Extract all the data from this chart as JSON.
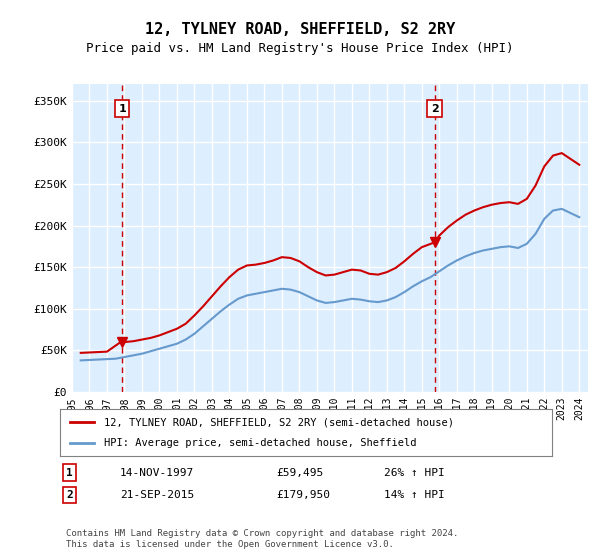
{
  "title": "12, TYLNEY ROAD, SHEFFIELD, S2 2RY",
  "subtitle": "Price paid vs. HM Land Registry's House Price Index (HPI)",
  "sale1_date": "1997-11-14",
  "sale1_price": 59495,
  "sale1_label": "1",
  "sale1_pct": "26% ↑ HPI",
  "sale1_display": "14-NOV-1997",
  "sale1_price_str": "£59,495",
  "sale2_date": "2015-09-21",
  "sale2_price": 179950,
  "sale2_label": "2",
  "sale2_pct": "14% ↑ HPI",
  "sale2_display": "21-SEP-2015",
  "sale2_price_str": "£179,950",
  "legend_line1": "12, TYLNEY ROAD, SHEFFIELD, S2 2RY (semi-detached house)",
  "legend_line2": "HPI: Average price, semi-detached house, Sheffield",
  "footer": "Contains HM Land Registry data © Crown copyright and database right 2024.\nThis data is licensed under the Open Government Licence v3.0.",
  "price_line_color": "#cc0000",
  "hpi_line_color": "#6699cc",
  "dashed_line_color": "#cc0000",
  "background_color": "#ffffff",
  "plot_bg_color": "#ddeeff",
  "grid_color": "#ffffff",
  "ylim": [
    0,
    370000
  ],
  "yticks": [
    0,
    50000,
    100000,
    150000,
    200000,
    250000,
    300000,
    350000
  ],
  "ytick_labels": [
    "£0",
    "£50K",
    "£100K",
    "£150K",
    "£200K",
    "£250K",
    "£300K",
    "£350K"
  ],
  "hpi_data_x": [
    1995.5,
    1996.0,
    1996.5,
    1997.0,
    1997.5,
    1998.0,
    1998.5,
    1999.0,
    1999.5,
    2000.0,
    2000.5,
    2001.0,
    2001.5,
    2002.0,
    2002.5,
    2003.0,
    2003.5,
    2004.0,
    2004.5,
    2005.0,
    2005.5,
    2006.0,
    2006.5,
    2007.0,
    2007.5,
    2008.0,
    2008.5,
    2009.0,
    2009.5,
    2010.0,
    2010.5,
    2011.0,
    2011.5,
    2012.0,
    2012.5,
    2013.0,
    2013.5,
    2014.0,
    2014.5,
    2015.0,
    2015.5,
    2016.0,
    2016.5,
    2017.0,
    2017.5,
    2018.0,
    2018.5,
    2019.0,
    2019.5,
    2020.0,
    2020.5,
    2021.0,
    2021.5,
    2022.0,
    2022.5,
    2023.0,
    2023.5,
    2024.0
  ],
  "hpi_data_y": [
    38000,
    38500,
    39000,
    39500,
    40000,
    42000,
    44000,
    46000,
    49000,
    52000,
    55000,
    58000,
    63000,
    70000,
    79000,
    88000,
    97000,
    105000,
    112000,
    116000,
    118000,
    120000,
    122000,
    124000,
    123000,
    120000,
    115000,
    110000,
    107000,
    108000,
    110000,
    112000,
    111000,
    109000,
    108000,
    110000,
    114000,
    120000,
    127000,
    133000,
    138000,
    145000,
    152000,
    158000,
    163000,
    167000,
    170000,
    172000,
    174000,
    175000,
    173000,
    178000,
    190000,
    208000,
    218000,
    220000,
    215000,
    210000
  ],
  "price_data_x": [
    1995.5,
    1996.0,
    1996.5,
    1997.0,
    1997.75,
    1998.0,
    1998.5,
    1999.0,
    1999.5,
    2000.0,
    2000.5,
    2001.0,
    2001.5,
    2002.0,
    2002.5,
    2003.0,
    2003.5,
    2004.0,
    2004.5,
    2005.0,
    2005.5,
    2006.0,
    2006.5,
    2007.0,
    2007.5,
    2008.0,
    2008.5,
    2009.0,
    2009.5,
    2010.0,
    2010.5,
    2011.0,
    2011.5,
    2012.0,
    2012.5,
    2013.0,
    2013.5,
    2014.0,
    2014.5,
    2015.0,
    2015.75,
    2016.0,
    2016.5,
    2017.0,
    2017.5,
    2018.0,
    2018.5,
    2019.0,
    2019.5,
    2020.0,
    2020.5,
    2021.0,
    2021.5,
    2022.0,
    2022.5,
    2023.0,
    2023.5,
    2024.0
  ],
  "price_data_y": [
    47000,
    47500,
    48000,
    48500,
    59495,
    60000,
    61000,
    63000,
    65000,
    68000,
    72000,
    76000,
    82000,
    92000,
    103000,
    115000,
    127000,
    138000,
    147000,
    152000,
    153000,
    155000,
    158000,
    162000,
    161000,
    157000,
    150000,
    144000,
    140000,
    141000,
    144000,
    147000,
    146000,
    142000,
    141000,
    144000,
    149000,
    157000,
    166000,
    174000,
    179950,
    188000,
    198000,
    206000,
    213000,
    218000,
    222000,
    225000,
    227000,
    228000,
    226000,
    232000,
    248000,
    271000,
    284000,
    287000,
    280000,
    273000
  ],
  "xlim_left": 1995.0,
  "xlim_right": 2024.5,
  "xticks": [
    1995,
    1996,
    1997,
    1998,
    1999,
    2000,
    2001,
    2002,
    2003,
    2004,
    2005,
    2006,
    2007,
    2008,
    2009,
    2010,
    2011,
    2012,
    2013,
    2014,
    2015,
    2016,
    2017,
    2018,
    2019,
    2020,
    2021,
    2022,
    2023,
    2024
  ]
}
